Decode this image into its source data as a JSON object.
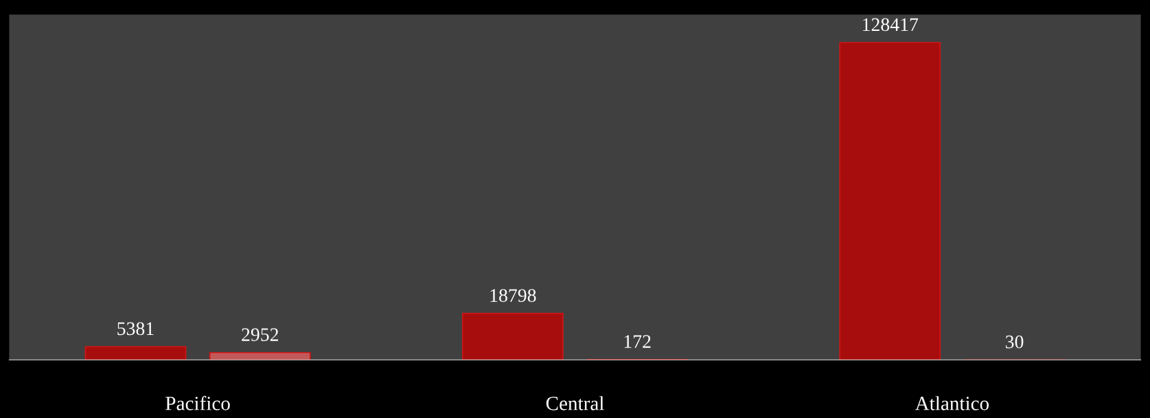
{
  "chart_data": {
    "type": "bar",
    "categories": [
      "Pacifico",
      "Central",
      "Atlantico"
    ],
    "series": [
      {
        "color": "#a80d0d",
        "values": [
          5381,
          18798,
          128417
        ]
      },
      {
        "color": "#c25a5a",
        "values": [
          2952,
          172,
          30
        ]
      }
    ],
    "data_labels": true,
    "grid": false,
    "legend": false
  }
}
